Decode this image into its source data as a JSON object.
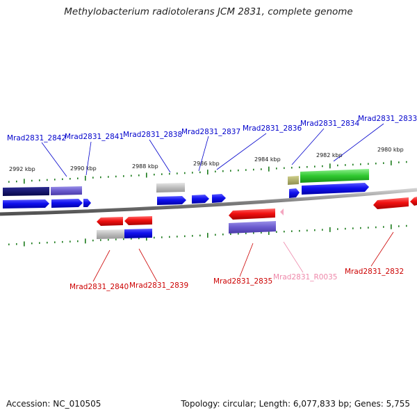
{
  "title": "Methylobacterium radiotolerans JCM 2831, complete genome",
  "footer": {
    "accession": "Accession: NC_010505",
    "topology": "Topology: circular; Length: 6,077,833 bp; Genes: 5,755"
  },
  "kbp_ticks": [
    "2992 kbp",
    "2990 kbp",
    "2988 kbp",
    "2986 kbp",
    "2984 kbp",
    "2982 kbp",
    "2980 kbp"
  ],
  "gene_labels_top": [
    "Mrad2831_2842",
    "Mrad2831_2841",
    "Mrad2831_2838",
    "Mrad2831_2837",
    "Mrad2831_2836",
    "Mrad2831_2834",
    "Mrad2831_2833"
  ],
  "gene_labels_bottom": [
    "Mrad2831_2840",
    "Mrad2831_2839",
    "Mrad2831_2835",
    "Mrad2831_R0035",
    "Mrad2831_2832"
  ],
  "colors": {
    "forward_label": "#0000cc",
    "reverse_label": "#cc0000",
    "rna_label": "#ee88aa",
    "backbone": "#808080",
    "tick": "#1a7a1a"
  }
}
